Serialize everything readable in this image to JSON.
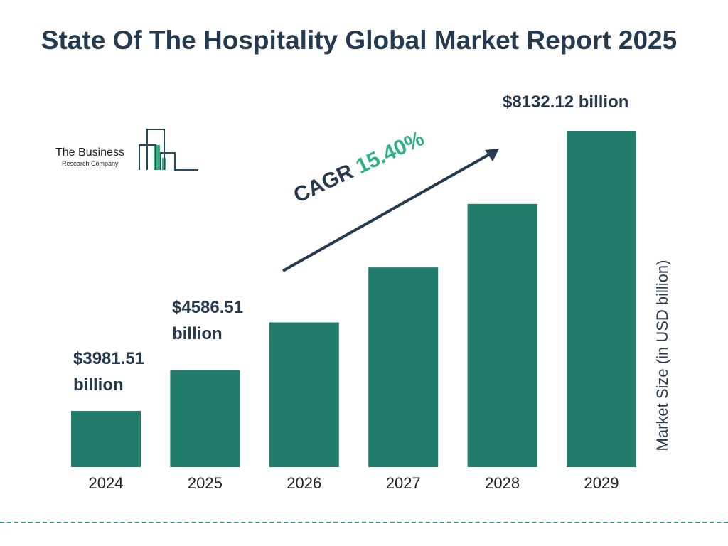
{
  "chart_data": {
    "type": "bar",
    "title": "State Of The Hospitality Global Market Report 2025",
    "categories": [
      "2024",
      "2025",
      "2026",
      "2027",
      "2028",
      "2029"
    ],
    "values": [
      3981.51,
      4586.51,
      5292.8,
      6108.0,
      7048.6,
      8132.12
    ],
    "data_labels": [
      "$3981.51 billion",
      "$4586.51 billion",
      "",
      "",
      "",
      "$8132.12 billion"
    ],
    "ylabel": "Market Size (in USD billion)",
    "xlabel": "",
    "bar_color": "#217c6c",
    "grid": false,
    "annotation": {
      "prefix": "CAGR",
      "value": "15.40%",
      "value_color": "#2fb27f"
    }
  },
  "logo": {
    "line1": "The Business",
    "line2": "Research Company"
  }
}
